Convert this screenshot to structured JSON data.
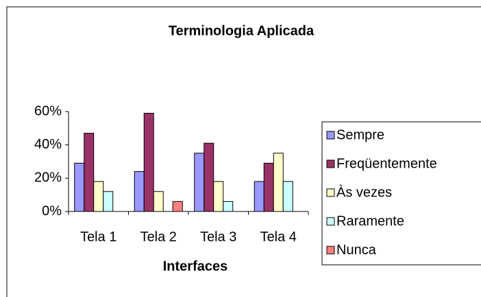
{
  "chart_data": {
    "type": "bar",
    "title": "Terminologia Aplicada",
    "x_label": "Interfaces",
    "categories": [
      "Tela 1",
      "Tela 2",
      "Tela 3",
      "Tela 4"
    ],
    "series": [
      {
        "name": "Sempre",
        "color": "#9999ff",
        "values": [
          29,
          24,
          35,
          18
        ]
      },
      {
        "name": "Freqüentemente",
        "color": "#993366",
        "values": [
          47,
          59,
          41,
          29
        ]
      },
      {
        "name": "Às vezes",
        "color": "#ffffcc",
        "values": [
          18,
          12,
          18,
          35
        ]
      },
      {
        "name": "Raramente",
        "color": "#ccffff",
        "values": [
          12,
          0,
          6,
          18
        ]
      },
      {
        "name": "Nunca",
        "color": "#ff8080",
        "values": [
          0,
          6,
          0,
          0
        ]
      }
    ],
    "ylim": [
      0,
      60
    ],
    "yticks": [
      {
        "value": 0,
        "label": "0%"
      },
      {
        "value": 20,
        "label": "20%"
      },
      {
        "value": 40,
        "label": "40%"
      },
      {
        "value": 60,
        "label": "60%"
      }
    ],
    "grid": false,
    "legend": "right"
  }
}
